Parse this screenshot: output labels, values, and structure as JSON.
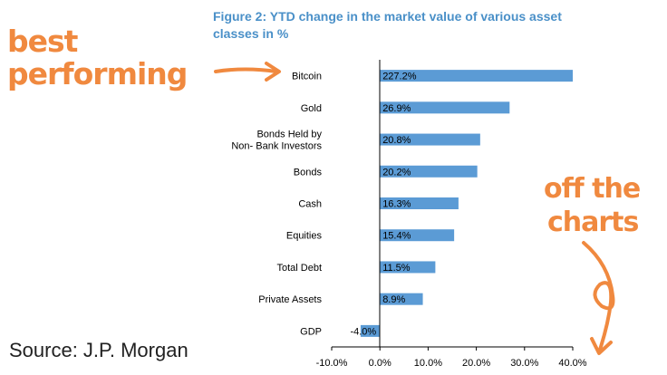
{
  "annotations": {
    "best_line1": "best",
    "best_line2": "performing",
    "off_line1": "off the",
    "off_line2": "charts",
    "accent_color": "#f0893f"
  },
  "source": "Source: J.P. Morgan",
  "chart_data": {
    "type": "bar",
    "orientation": "horizontal",
    "title": "Figure 2: YTD change in the market value of various asset classes in %",
    "categories": [
      "Bitcoin",
      "Gold",
      "Bonds Held by Non- Bank Investors",
      "Bonds",
      "Cash",
      "Equities",
      "Total Debt",
      "Private Assets",
      "GDP"
    ],
    "category_lines": [
      [
        "Bitcoin"
      ],
      [
        "Gold"
      ],
      [
        "Bonds Held by",
        "Non- Bank Investors"
      ],
      [
        "Bonds"
      ],
      [
        "Cash"
      ],
      [
        "Equities"
      ],
      [
        "Total Debt"
      ],
      [
        "Private Assets"
      ],
      [
        "GDP"
      ]
    ],
    "values": [
      227.2,
      26.9,
      20.8,
      20.2,
      16.3,
      15.4,
      11.5,
      8.9,
      -4.0
    ],
    "value_labels": [
      "227.2%",
      "26.9%",
      "20.8%",
      "20.2%",
      "16.3%",
      "15.4%",
      "11.5%",
      "8.9%",
      "-4.0%"
    ],
    "xlim": [
      -10,
      40
    ],
    "x_ticks": [
      -10,
      0,
      10,
      20,
      30,
      40
    ],
    "x_tick_labels": [
      "-10.0%",
      "0.0%",
      "10.0%",
      "20.0%",
      "30.0%",
      "40.0%"
    ],
    "bar_color": "#5b9bd5",
    "clipped_bar_value_display": 40,
    "grid": false,
    "xlabel": "",
    "ylabel": ""
  }
}
